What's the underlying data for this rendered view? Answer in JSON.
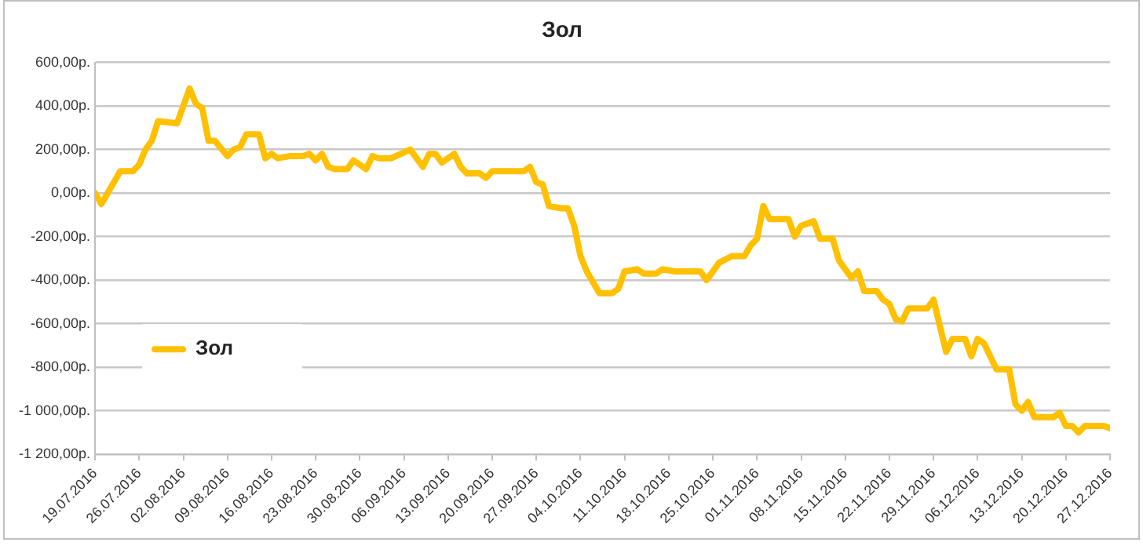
{
  "chart_data": {
    "type": "line",
    "title": "Зол",
    "legend": "left",
    "grid": "y",
    "marker": "none",
    "line_style": "solid",
    "xlim": [
      "2016-07-19",
      "2016-12-27"
    ],
    "xticks": [
      {
        "value": "2016-07-19",
        "label": "19.07.2016"
      },
      {
        "value": "2016-07-26",
        "label": "26.07.2016"
      },
      {
        "value": "2016-08-02",
        "label": "02.08.2016"
      },
      {
        "value": "2016-08-09",
        "label": "09.08.2016"
      },
      {
        "value": "2016-08-16",
        "label": "16.08.2016"
      },
      {
        "value": "2016-08-23",
        "label": "23.08.2016"
      },
      {
        "value": "2016-08-30",
        "label": "30.08.2016"
      },
      {
        "value": "2016-09-06",
        "label": "06.09.2016"
      },
      {
        "value": "2016-09-13",
        "label": "13.09.2016"
      },
      {
        "value": "2016-09-20",
        "label": "20.09.2016"
      },
      {
        "value": "2016-09-27",
        "label": "27.09.2016"
      },
      {
        "value": "2016-10-04",
        "label": "04.10.2016"
      },
      {
        "value": "2016-10-11",
        "label": "11.10.2016"
      },
      {
        "value": "2016-10-18",
        "label": "18.10.2016"
      },
      {
        "value": "2016-10-25",
        "label": "25.10.2016"
      },
      {
        "value": "2016-11-01",
        "label": "01.11.2016"
      },
      {
        "value": "2016-11-08",
        "label": "08.11.2016"
      },
      {
        "value": "2016-11-15",
        "label": "15.11.2016"
      },
      {
        "value": "2016-11-22",
        "label": "22.11.2016"
      },
      {
        "value": "2016-11-29",
        "label": "29.11.2016"
      },
      {
        "value": "2016-12-06",
        "label": "06.12.2016"
      },
      {
        "value": "2016-12-13",
        "label": "13.12.2016"
      },
      {
        "value": "2016-12-20",
        "label": "20.12.2016"
      },
      {
        "value": "2016-12-27",
        "label": "27.12.2016"
      }
    ],
    "ylim": [
      -1200,
      600
    ],
    "yticks": [
      {
        "value": -1200,
        "label": "-1 200,00р."
      },
      {
        "value": -1000,
        "label": "-1 000,00р."
      },
      {
        "value": -800,
        "label": "-800,00р."
      },
      {
        "value": -600,
        "label": "-600,00р."
      },
      {
        "value": -400,
        "label": "-400,00р."
      },
      {
        "value": -200,
        "label": "-200,00р."
      },
      {
        "value": 0,
        "label": "0,00р."
      },
      {
        "value": 200,
        "label": "200,00р."
      },
      {
        "value": 400,
        "label": "400,00р."
      },
      {
        "value": 600,
        "label": "600,00р."
      }
    ],
    "series": [
      {
        "name": "Зол",
        "color": "#ffc000",
        "x": [
          "2016-07-19",
          "2016-07-20",
          "2016-07-22",
          "2016-07-23",
          "2016-07-25",
          "2016-07-26",
          "2016-07-27",
          "2016-07-28",
          "2016-07-29",
          "2016-08-01",
          "2016-08-03",
          "2016-08-04",
          "2016-08-05",
          "2016-08-06",
          "2016-08-07",
          "2016-08-09",
          "2016-08-10",
          "2016-08-11",
          "2016-08-12",
          "2016-08-14",
          "2016-08-15",
          "2016-08-16",
          "2016-08-17",
          "2016-08-19",
          "2016-08-21",
          "2016-08-22",
          "2016-08-23",
          "2016-08-24",
          "2016-08-25",
          "2016-08-26",
          "2016-08-28",
          "2016-08-29",
          "2016-08-31",
          "2016-09-01",
          "2016-09-02",
          "2016-09-04",
          "2016-09-07",
          "2016-09-09",
          "2016-09-10",
          "2016-09-11",
          "2016-09-12",
          "2016-09-14",
          "2016-09-15",
          "2016-09-16",
          "2016-09-18",
          "2016-09-19",
          "2016-09-20",
          "2016-09-22",
          "2016-09-24",
          "2016-09-25",
          "2016-09-26",
          "2016-09-27",
          "2016-09-28",
          "2016-09-29",
          "2016-10-01",
          "2016-10-02",
          "2016-10-03",
          "2016-10-04",
          "2016-10-05",
          "2016-10-07",
          "2016-10-09",
          "2016-10-10",
          "2016-10-11",
          "2016-10-13",
          "2016-10-14",
          "2016-10-16",
          "2016-10-17",
          "2016-10-19",
          "2016-10-22",
          "2016-10-23",
          "2016-10-24",
          "2016-10-26",
          "2016-10-28",
          "2016-10-30",
          "2016-10-31",
          "2016-11-01",
          "2016-11-02",
          "2016-11-03",
          "2016-11-06",
          "2016-11-07",
          "2016-11-08",
          "2016-11-10",
          "2016-11-11",
          "2016-11-13",
          "2016-11-14",
          "2016-11-16",
          "2016-11-17",
          "2016-11-18",
          "2016-11-20",
          "2016-11-21",
          "2016-11-22",
          "2016-11-23",
          "2016-11-24",
          "2016-11-25",
          "2016-11-28",
          "2016-11-29",
          "2016-11-30",
          "2016-12-01",
          "2016-12-02",
          "2016-12-04",
          "2016-12-05",
          "2016-12-06",
          "2016-12-07",
          "2016-12-09",
          "2016-12-11",
          "2016-12-12",
          "2016-12-13",
          "2016-12-14",
          "2016-12-15",
          "2016-12-18",
          "2016-12-19",
          "2016-12-20",
          "2016-12-21",
          "2016-12-22",
          "2016-12-23",
          "2016-12-26",
          "2016-12-27"
        ],
        "values": [
          0,
          -50,
          50,
          100,
          100,
          130,
          200,
          240,
          330,
          320,
          480,
          410,
          390,
          240,
          240,
          170,
          200,
          210,
          270,
          270,
          160,
          180,
          160,
          170,
          170,
          180,
          150,
          180,
          120,
          110,
          110,
          150,
          110,
          170,
          160,
          160,
          200,
          120,
          180,
          180,
          140,
          180,
          120,
          90,
          90,
          70,
          100,
          100,
          100,
          100,
          120,
          50,
          40,
          -60,
          -70,
          -70,
          -150,
          -290,
          -360,
          -460,
          -460,
          -440,
          -360,
          -350,
          -370,
          -370,
          -350,
          -360,
          -360,
          -360,
          -400,
          -320,
          -290,
          -290,
          -240,
          -210,
          -60,
          -120,
          -120,
          -200,
          -150,
          -130,
          -210,
          -210,
          -310,
          -390,
          -360,
          -450,
          -450,
          -490,
          -510,
          -580,
          -590,
          -530,
          -530,
          -490,
          -610,
          -730,
          -670,
          -670,
          -750,
          -670,
          -690,
          -810,
          -810,
          -970,
          -1000,
          -960,
          -1030,
          -1030,
          -1010,
          -1070,
          -1070,
          -1100,
          -1070,
          -1070,
          -1080
        ]
      }
    ]
  }
}
